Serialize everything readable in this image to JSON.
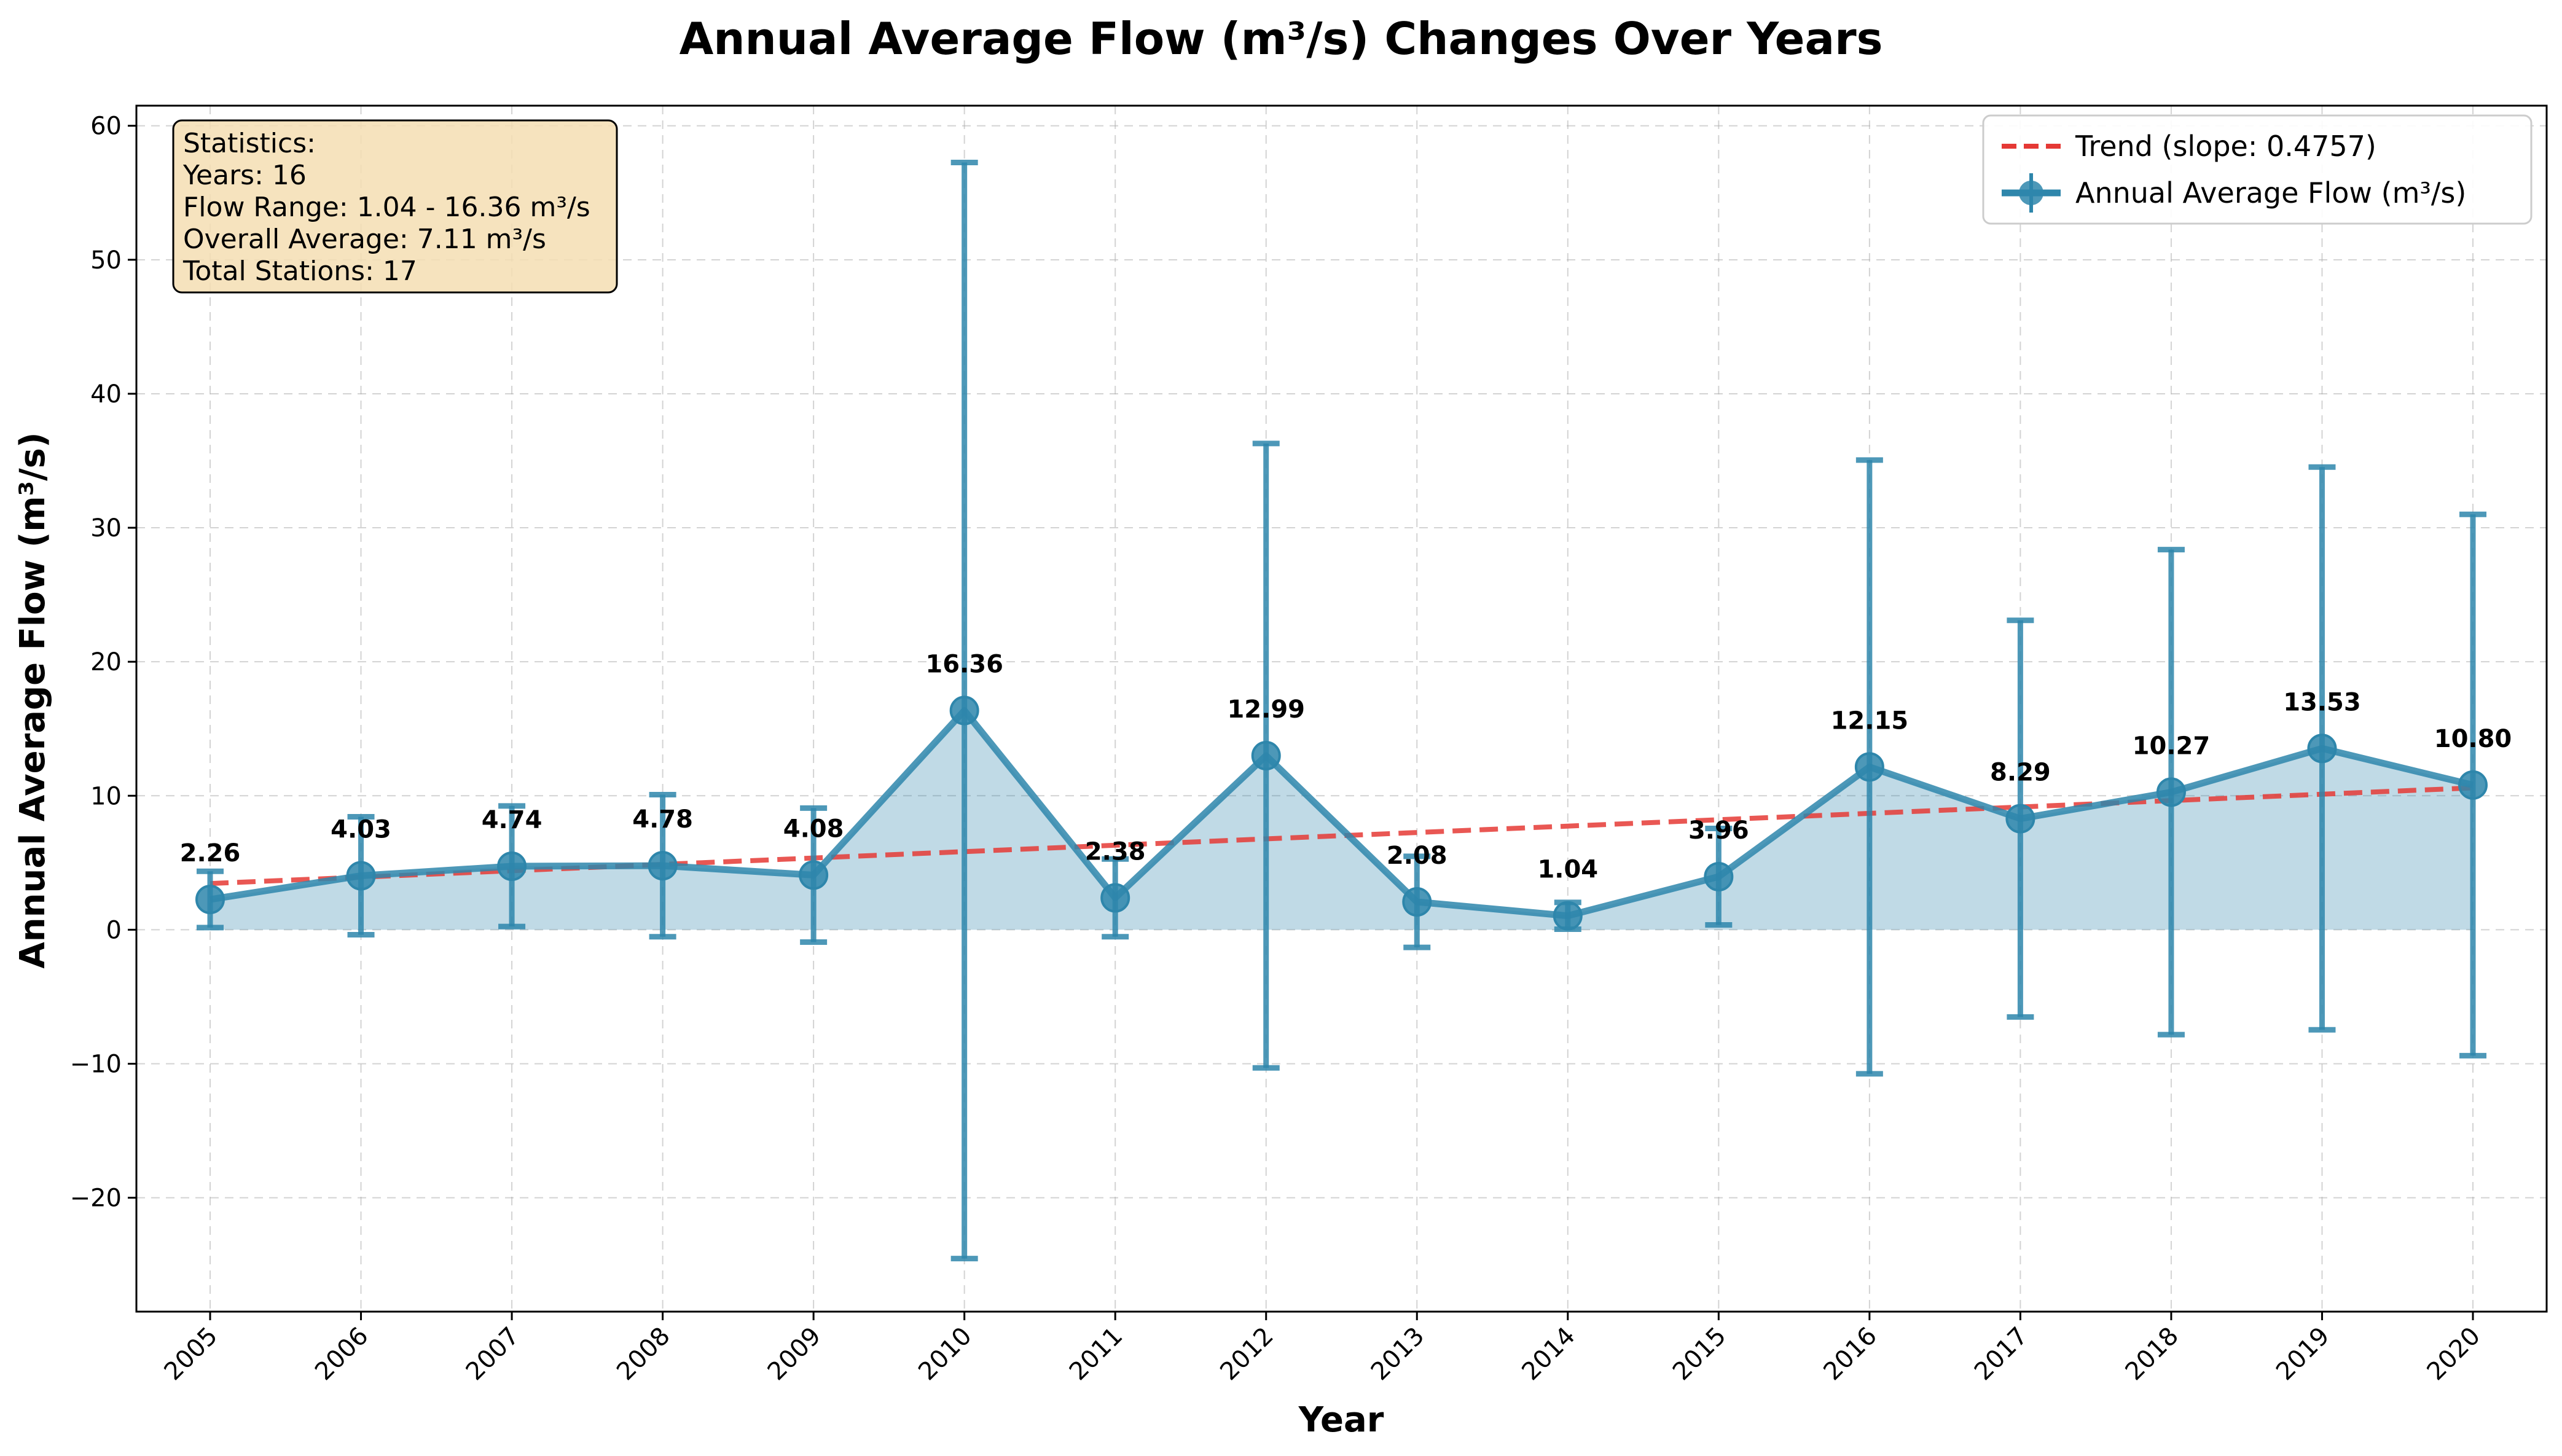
{
  "chart_data": {
    "type": "line",
    "title": "Annual Average Flow (m³/s) Changes Over Years",
    "xlabel": "Year",
    "ylabel": "Annual Average Flow (m³/s)",
    "x": [
      "2005",
      "2006",
      "2007",
      "2008",
      "2009",
      "2010",
      "2011",
      "2012",
      "2013",
      "2014",
      "2015",
      "2016",
      "2017",
      "2018",
      "2019",
      "2020"
    ],
    "ylim": [
      -28.5,
      61.5
    ],
    "yticks": [
      -20,
      -10,
      0,
      10,
      20,
      30,
      40,
      50,
      60
    ],
    "ytick_labels": [
      "−20",
      "−10",
      "0",
      "10",
      "20",
      "30",
      "40",
      "50",
      "60"
    ],
    "grid": true,
    "legend_position": "top-right",
    "series": [
      {
        "name": "Annual Average Flow (m³/s)",
        "type": "line-errorbar-filled",
        "color": "#2E86AB",
        "values": [
          2.26,
          4.03,
          4.74,
          4.78,
          4.08,
          16.36,
          2.38,
          12.99,
          2.08,
          1.04,
          3.96,
          12.15,
          8.29,
          10.27,
          13.53,
          10.8
        ],
        "value_labels": [
          "2.26",
          "4.03",
          "4.74",
          "4.78",
          "4.08",
          "16.36",
          "2.38",
          "12.99",
          "2.08",
          "1.04",
          "3.96",
          "12.15",
          "8.29",
          "10.27",
          "13.53",
          "10.80"
        ],
        "error": [
          2.1,
          4.4,
          4.5,
          5.3,
          5.0,
          40.9,
          2.9,
          23.3,
          3.4,
          1.0,
          3.6,
          22.9,
          14.8,
          18.1,
          21.0,
          20.2
        ]
      },
      {
        "name": "Trend (slope: 0.4757)",
        "type": "dashed-line",
        "color": "#E53935",
        "y_start": 3.45,
        "y_end": 10.59
      }
    ],
    "annotation": {
      "lines": [
        "Statistics:",
        "Years: 16",
        "Flow Range: 1.04 - 16.36 m³/s",
        "Overall Average: 7.11 m³/s",
        "Total Stations: 17"
      ],
      "position": "top-left",
      "bg_color": "#F5DEB3"
    }
  }
}
